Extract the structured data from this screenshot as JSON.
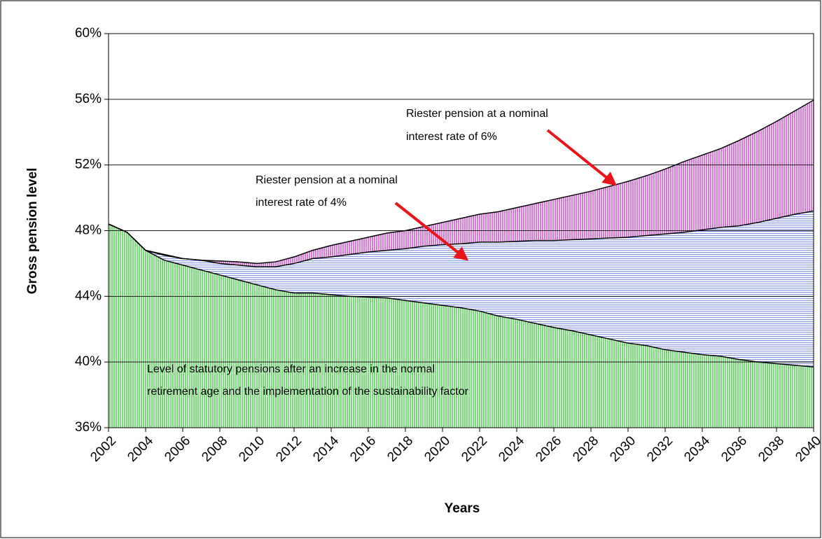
{
  "chart_data": {
    "type": "area",
    "x": [
      2002,
      2003,
      2004,
      2005,
      2006,
      2007,
      2008,
      2009,
      2010,
      2011,
      2012,
      2013,
      2014,
      2015,
      2016,
      2017,
      2018,
      2019,
      2020,
      2021,
      2022,
      2023,
      2024,
      2025,
      2026,
      2027,
      2028,
      2029,
      2030,
      2031,
      2032,
      2033,
      2034,
      2035,
      2036,
      2037,
      2038,
      2039,
      2040
    ],
    "series": [
      {
        "color": "#dd77dd",
        "values": [
          48.4,
          47.9,
          46.8,
          46.55,
          46.3,
          46.2,
          46.15,
          46.1,
          46.0,
          46.1,
          46.4,
          46.8,
          47.1,
          47.35,
          47.6,
          47.85,
          48.0,
          48.25,
          48.5,
          48.75,
          49.0,
          49.15,
          49.4,
          49.65,
          49.9,
          50.15,
          50.4,
          50.7,
          51.0,
          51.35,
          51.75,
          52.2,
          52.6,
          53.0,
          53.5,
          54.05,
          54.65,
          55.3,
          55.95
        ]
      },
      {
        "color": "#8899dd",
        "values": [
          48.4,
          47.9,
          46.8,
          46.5,
          46.3,
          46.2,
          46.0,
          45.9,
          45.8,
          45.8,
          46.0,
          46.3,
          46.4,
          46.55,
          46.7,
          46.8,
          46.9,
          47.05,
          47.15,
          47.2,
          47.3,
          47.3,
          47.35,
          47.4,
          47.4,
          47.45,
          47.5,
          47.55,
          47.6,
          47.7,
          47.8,
          47.9,
          48.05,
          48.2,
          48.3,
          48.5,
          48.75,
          49.0,
          49.2
        ]
      },
      {
        "color": "#77dd77",
        "values": [
          48.4,
          47.9,
          46.8,
          46.2,
          45.9,
          45.6,
          45.3,
          45.0,
          44.7,
          44.4,
          44.2,
          44.2,
          44.1,
          44.0,
          43.95,
          43.9,
          43.75,
          43.6,
          43.45,
          43.3,
          43.1,
          42.8,
          42.6,
          42.35,
          42.1,
          41.9,
          41.65,
          41.4,
          41.15,
          41.0,
          40.75,
          40.6,
          40.45,
          40.35,
          40.15,
          40.0,
          39.9,
          39.8,
          39.7
        ]
      }
    ],
    "xlim": [
      2002,
      2040
    ],
    "xticks": [
      2002,
      2004,
      2006,
      2008,
      2010,
      2012,
      2014,
      2016,
      2018,
      2020,
      2022,
      2024,
      2026,
      2028,
      2030,
      2032,
      2034,
      2036,
      2038,
      2040
    ],
    "ylim": [
      36,
      60
    ],
    "yticks": [
      {
        "value": 36,
        "label": "36%"
      },
      {
        "value": 40,
        "label": "40%"
      },
      {
        "value": 44,
        "label": "44%"
      },
      {
        "value": 48,
        "label": "48%"
      },
      {
        "value": 52,
        "label": "52%"
      },
      {
        "value": 56,
        "label": "56%"
      },
      {
        "value": 60,
        "label": "60%"
      }
    ],
    "grid": true,
    "x_label": "Years",
    "y_label": "Gross pension level",
    "annotations": [
      [
        "Riester pension at a nominal",
        "interest rate of 6%"
      ],
      [
        "Riester pension at a nominal",
        "interest rate of 4%"
      ],
      [
        "Level of statutory pensions after an increase in the normal",
        "retirement age and the implementation of the sustainability factor"
      ]
    ]
  }
}
